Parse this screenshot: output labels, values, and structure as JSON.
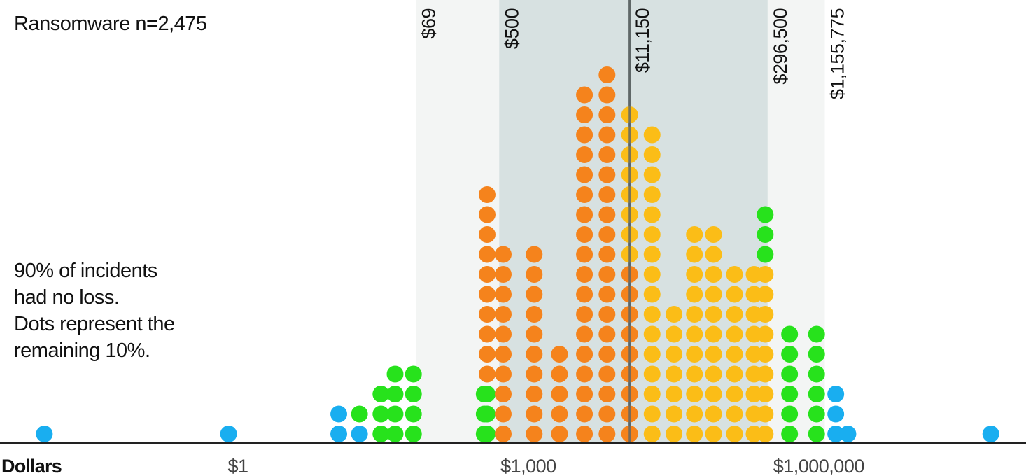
{
  "title": "Ransomware n=2,475",
  "note_lines": [
    "90% of incidents",
    "had no loss.",
    "Dots represent the",
    "remaining 10%."
  ],
  "colors": {
    "outer_band": "#f3f5f4",
    "inner_band": "#d7e1e1",
    "median_line": "#5f6767",
    "axis": "#222222",
    "tail": "#19aef0",
    "lower_percentile": "#27e21c",
    "lower_mid": "#f5831c",
    "upper_mid": "#fbbd17",
    "upper_percentile": "#27e21c"
  },
  "chart_data": {
    "type": "dot-histogram",
    "x_scale": "log",
    "x_axis_title": "Dollars",
    "x_ticks": [
      {
        "value": 1,
        "label": "$1"
      },
      {
        "value": 1000,
        "label": "$1,000"
      },
      {
        "value": 1000000,
        "label": "$1,000,000"
      }
    ],
    "percentile_markers": [
      {
        "value": 69,
        "label": "$69"
      },
      {
        "value": 500,
        "label": "$500"
      },
      {
        "value": 11150,
        "label": "$11,150"
      },
      {
        "value": 296500,
        "label": "$296,500"
      },
      {
        "value": 1155775,
        "label": "$1,155,775"
      }
    ],
    "bands": [
      {
        "from": 69,
        "to": 1155775,
        "shade": "outer_band"
      },
      {
        "from": 500,
        "to": 296500,
        "shade": "inner_band"
      }
    ],
    "median": {
      "value": 11150
    },
    "dot_columns": [
      {
        "x": 0.01,
        "dots": [
          "tail"
        ]
      },
      {
        "x": 0.8,
        "dots": [
          "tail"
        ]
      },
      {
        "x": 11,
        "dots": [
          "tail",
          "tail"
        ]
      },
      {
        "x": 18,
        "dots": [
          "tail",
          "lower_percentile"
        ]
      },
      {
        "x": 30,
        "dots": [
          "lower_percentile",
          "lower_percentile",
          "lower_percentile"
        ]
      },
      {
        "x": 42,
        "dots": [
          "lower_percentile",
          "lower_percentile",
          "lower_percentile",
          "lower_percentile"
        ]
      },
      {
        "x": 65,
        "dots": [
          "lower_percentile",
          "lower_percentile",
          "lower_percentile",
          "lower_percentile"
        ]
      },
      {
        "x": 350,
        "dots": [
          "lower_percentile",
          "lower_percentile",
          "lower_percentile"
        ]
      },
      {
        "x": 375,
        "dots": [
          "lower_percentile",
          "lower_percentile",
          "lower_percentile",
          "lower_mid",
          "lower_mid",
          "lower_mid",
          "lower_mid",
          "lower_mid",
          "lower_mid",
          "lower_mid",
          "lower_mid",
          "lower_mid",
          "lower_mid"
        ]
      },
      {
        "x": 550,
        "dots": [
          "lower_mid",
          "lower_mid",
          "lower_mid",
          "lower_mid",
          "lower_mid",
          "lower_mid",
          "lower_mid",
          "lower_mid",
          "lower_mid",
          "lower_mid"
        ]
      },
      {
        "x": 1150,
        "dots": [
          "lower_mid",
          "lower_mid",
          "lower_mid",
          "lower_mid",
          "lower_mid",
          "lower_mid",
          "lower_mid",
          "lower_mid",
          "lower_mid",
          "lower_mid"
        ]
      },
      {
        "x": 2100,
        "dots": [
          "lower_mid",
          "lower_mid",
          "lower_mid",
          "lower_mid",
          "lower_mid"
        ]
      },
      {
        "x": 3800,
        "dots": [
          "lower_mid",
          "lower_mid",
          "lower_mid",
          "lower_mid",
          "lower_mid",
          "lower_mid",
          "lower_mid",
          "lower_mid",
          "lower_mid",
          "lower_mid",
          "lower_mid",
          "lower_mid",
          "lower_mid",
          "lower_mid",
          "lower_mid",
          "lower_mid",
          "lower_mid",
          "lower_mid"
        ]
      },
      {
        "x": 6500,
        "dots": [
          "lower_mid",
          "lower_mid",
          "lower_mid",
          "lower_mid",
          "lower_mid",
          "lower_mid",
          "lower_mid",
          "lower_mid",
          "lower_mid",
          "lower_mid",
          "lower_mid",
          "lower_mid",
          "lower_mid",
          "lower_mid",
          "lower_mid",
          "lower_mid",
          "lower_mid",
          "lower_mid",
          "lower_mid"
        ]
      },
      {
        "x": 11150,
        "dots": [
          "lower_mid",
          "lower_mid",
          "lower_mid",
          "lower_mid",
          "lower_mid",
          "lower_mid",
          "lower_mid",
          "lower_mid",
          "lower_mid",
          "upper_mid",
          "upper_mid",
          "upper_mid",
          "upper_mid",
          "upper_mid",
          "upper_mid",
          "upper_mid",
          "upper_mid"
        ]
      },
      {
        "x": 19000,
        "dots": [
          "upper_mid",
          "upper_mid",
          "upper_mid",
          "upper_mid",
          "upper_mid",
          "upper_mid",
          "upper_mid",
          "upper_mid",
          "upper_mid",
          "upper_mid",
          "upper_mid",
          "upper_mid",
          "upper_mid",
          "upper_mid",
          "upper_mid",
          "upper_mid"
        ]
      },
      {
        "x": 32000,
        "dots": [
          "upper_mid",
          "upper_mid",
          "upper_mid",
          "upper_mid",
          "upper_mid",
          "upper_mid",
          "upper_mid"
        ]
      },
      {
        "x": 52000,
        "dots": [
          "upper_mid",
          "upper_mid",
          "upper_mid",
          "upper_mid",
          "upper_mid",
          "upper_mid",
          "upper_mid",
          "upper_mid",
          "upper_mid",
          "upper_mid",
          "upper_mid"
        ]
      },
      {
        "x": 82000,
        "dots": [
          "upper_mid",
          "upper_mid",
          "upper_mid",
          "upper_mid",
          "upper_mid",
          "upper_mid",
          "upper_mid",
          "upper_mid",
          "upper_mid",
          "upper_mid",
          "upper_mid"
        ]
      },
      {
        "x": 135000,
        "dots": [
          "upper_mid",
          "upper_mid",
          "upper_mid",
          "upper_mid",
          "upper_mid",
          "upper_mid",
          "upper_mid",
          "upper_mid",
          "upper_mid"
        ]
      },
      {
        "x": 215000,
        "dots": [
          "upper_mid",
          "upper_mid",
          "upper_mid",
          "upper_mid",
          "upper_mid",
          "upper_mid",
          "upper_mid",
          "upper_mid",
          "upper_mid"
        ]
      },
      {
        "x": 280000,
        "dots": [
          "upper_mid",
          "upper_mid",
          "upper_mid",
          "upper_mid",
          "upper_mid",
          "upper_mid",
          "upper_mid",
          "upper_mid",
          "upper_mid",
          "upper_percentile",
          "upper_percentile",
          "upper_percentile"
        ]
      },
      {
        "x": 500000,
        "dots": [
          "upper_percentile",
          "upper_percentile",
          "upper_percentile",
          "upper_percentile",
          "upper_percentile",
          "upper_percentile"
        ]
      },
      {
        "x": 950000,
        "dots": [
          "upper_percentile",
          "upper_percentile",
          "upper_percentile",
          "upper_percentile",
          "upper_percentile",
          "upper_percentile"
        ]
      },
      {
        "x": 1500000,
        "dots": [
          "tail",
          "tail",
          "tail"
        ]
      },
      {
        "x": 2000000,
        "dots": [
          "tail"
        ]
      },
      {
        "x": 60000000,
        "dots": [
          "tail"
        ]
      }
    ]
  }
}
